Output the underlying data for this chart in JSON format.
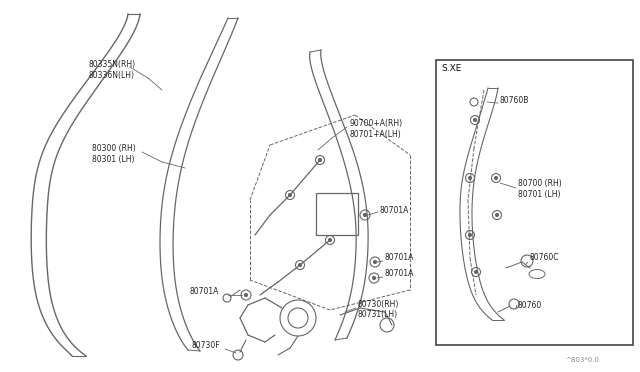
{
  "bg_color": "#ffffff",
  "lc": "#666666",
  "tc": "#222222",
  "figsize": [
    6.4,
    3.72
  ],
  "dpi": 100,
  "labels": {
    "80335N": "80335N(RH)",
    "80336N": "80336N(LH)",
    "80300": "80300 (RH)",
    "80301": "80301 (LH)",
    "90700": "90700+A(RH)",
    "80701plus": "80701+A(LH)",
    "80701A": "80701A",
    "80730RH": "80730(RH)",
    "80731LH": "80731(LH)",
    "80730F": "80730F",
    "sxe": "S.XE",
    "80760B": "80760B",
    "80700box": "80700 (RH)",
    "80701box": "80701 (LH)",
    "80760C": "80760C",
    "80760": "80760",
    "watermark": "^803*0.0"
  }
}
